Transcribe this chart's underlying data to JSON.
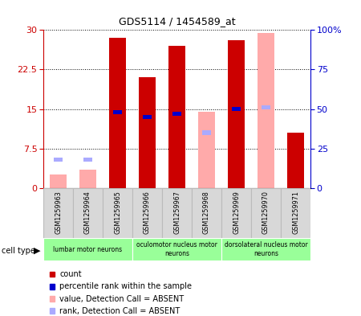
{
  "title": "GDS5114 / 1454589_at",
  "samples": [
    "GSM1259963",
    "GSM1259964",
    "GSM1259965",
    "GSM1259966",
    "GSM1259967",
    "GSM1259968",
    "GSM1259969",
    "GSM1259970",
    "GSM1259971"
  ],
  "count_values": [
    0,
    0,
    28.5,
    21.0,
    27.0,
    0,
    28.0,
    0,
    10.5
  ],
  "rank_values": [
    0,
    0,
    48.0,
    45.0,
    47.0,
    0,
    50.0,
    0,
    0
  ],
  "absent_value_values": [
    2.5,
    3.5,
    0,
    0,
    0,
    14.5,
    0,
    29.5,
    0
  ],
  "absent_rank_values": [
    18,
    18,
    0,
    0,
    0,
    35.0,
    0,
    51.0,
    0
  ],
  "count_color": "#cc0000",
  "rank_color": "#0000cc",
  "absent_value_color": "#ffaaaa",
  "absent_rank_color": "#aaaaff",
  "cell_type_groups": [
    {
      "label": "lumbar motor neurons",
      "start": 0,
      "end": 3
    },
    {
      "label": "oculomotor nucleus motor\nneurons",
      "start": 3,
      "end": 6
    },
    {
      "label": "dorsolateral nucleus motor\nneurons",
      "start": 6,
      "end": 9
    }
  ],
  "cell_type_color": "#99ff99",
  "ylim_left": [
    0,
    30
  ],
  "ylim_right": [
    0,
    100
  ],
  "yticks_left": [
    0,
    7.5,
    15,
    22.5,
    30
  ],
  "yticks_right": [
    0,
    25,
    50,
    75,
    100
  ],
  "bar_width": 0.55
}
